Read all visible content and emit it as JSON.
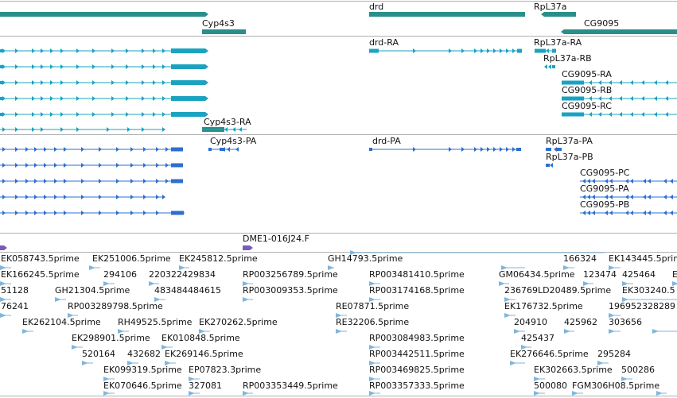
{
  "colors": {
    "gene": "#2a8f8a",
    "transcript": "#1aa3c0",
    "protein": "#2d6fd0",
    "clone": "#7a5bb8",
    "est": "#7fb6dc",
    "divider": "#b0b0b0"
  },
  "tracks": {
    "genes": {
      "labels": [
        "Cyp4s3",
        "drd",
        "RpL37a",
        "CG9095"
      ]
    },
    "transcripts": {
      "labels": [
        "drd-RA",
        "RpL37a-RA",
        "RpL37a-RB",
        "CG9095-RA",
        "CG9095-RB",
        "CG9095-RC",
        "Cyp4s3-RA"
      ]
    },
    "proteins": {
      "labels": [
        "Cyp4s3-PA",
        "drd-PA",
        "RpL37a-PA",
        "RpL37a-PB",
        "CG9095-PC",
        "CG9095-PA",
        "CG9095-PB"
      ]
    },
    "clones": {
      "labels": [
        "DME1-016J24.F"
      ]
    },
    "ests": {
      "labels": [
        "EK058743.5prime",
        "EK251006.5prime",
        "EK245812.5prime",
        "GH14793.5prime",
        "166324",
        "EK143445.5prime",
        "EK166245.5prime",
        "294106",
        "220322429834",
        "RP003256789.5prime",
        "RP003481410.5prime",
        "GM06434.5prime",
        "123474",
        "425464",
        "E",
        "51128",
        "GH21304.5prime",
        "483484484615",
        "RP003009353.5prime",
        "RP003174168.5prime",
        "236769LD20489.5prime",
        "EK303240.5",
        "76241",
        "RP003289798.5prime",
        "RE07871.5prime",
        "EK176732.5prime",
        "196952328289",
        "EK262104.5prime",
        "RH49525.5prime",
        "EK270262.5prime",
        "RE32206.5prime",
        "204910",
        "425962",
        "303656",
        "EK298901.5prime",
        "EK010848.5prime",
        "RP003084983.5prime",
        "425437",
        "520164",
        "432682",
        "EK269146.5prime",
        "RP003442511.5prime",
        "EK276646.5prime",
        "295284",
        "EK099319.5prime",
        "EP07823.3prime",
        "RP003469825.5prime",
        "EK302663.5prime",
        "500286",
        "EK070646.5prime",
        "327081",
        "RP003353449.5prime",
        "RP003357333.5prime",
        "500080",
        "FGM306H08.5prime"
      ]
    }
  }
}
